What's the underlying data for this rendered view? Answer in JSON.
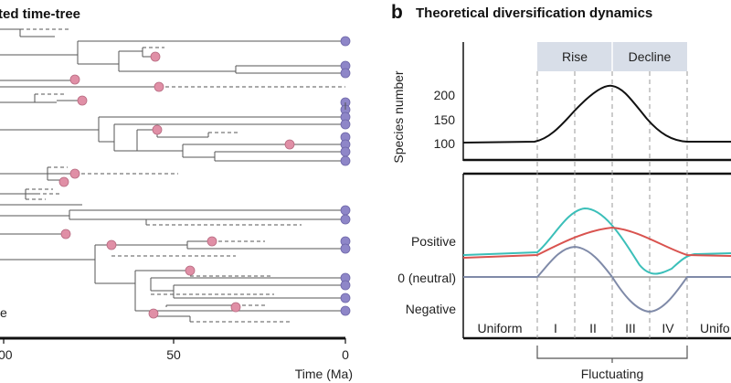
{
  "panel_a": {
    "title_fragment": "ted time-tree",
    "x_ticks": [
      "00",
      "50",
      "0"
    ],
    "x_axis_label": "Time (Ma)",
    "legend_fragment": "e"
  },
  "panel_b": {
    "letter": "b",
    "title": "Theoretical diversification dynamics",
    "phase_labels": {
      "rise": "Rise",
      "decline": "Decline"
    },
    "top_chart": {
      "ylabel": "Species number",
      "yticks": [
        "200",
        "150",
        "100"
      ],
      "line_color": "#111111"
    },
    "bottom_chart": {
      "row_labels": {
        "positive": "Positive",
        "neutral": "0 (neutral)",
        "negative": "Negative"
      },
      "series_colors": {
        "teal": "#3bbfb9",
        "red": "#d9534f",
        "slate": "#7f8aa8"
      }
    },
    "x_categories": [
      "Uniform",
      "I",
      "II",
      "III",
      "IV",
      "Unifo"
    ],
    "bracket_label": "Fluctuating"
  },
  "colors": {
    "extant_tip": "#8e86c8",
    "extinct_tip": "#e08fa6",
    "phase_band": "#d8dee8",
    "dashed_guide": "#999999"
  }
}
